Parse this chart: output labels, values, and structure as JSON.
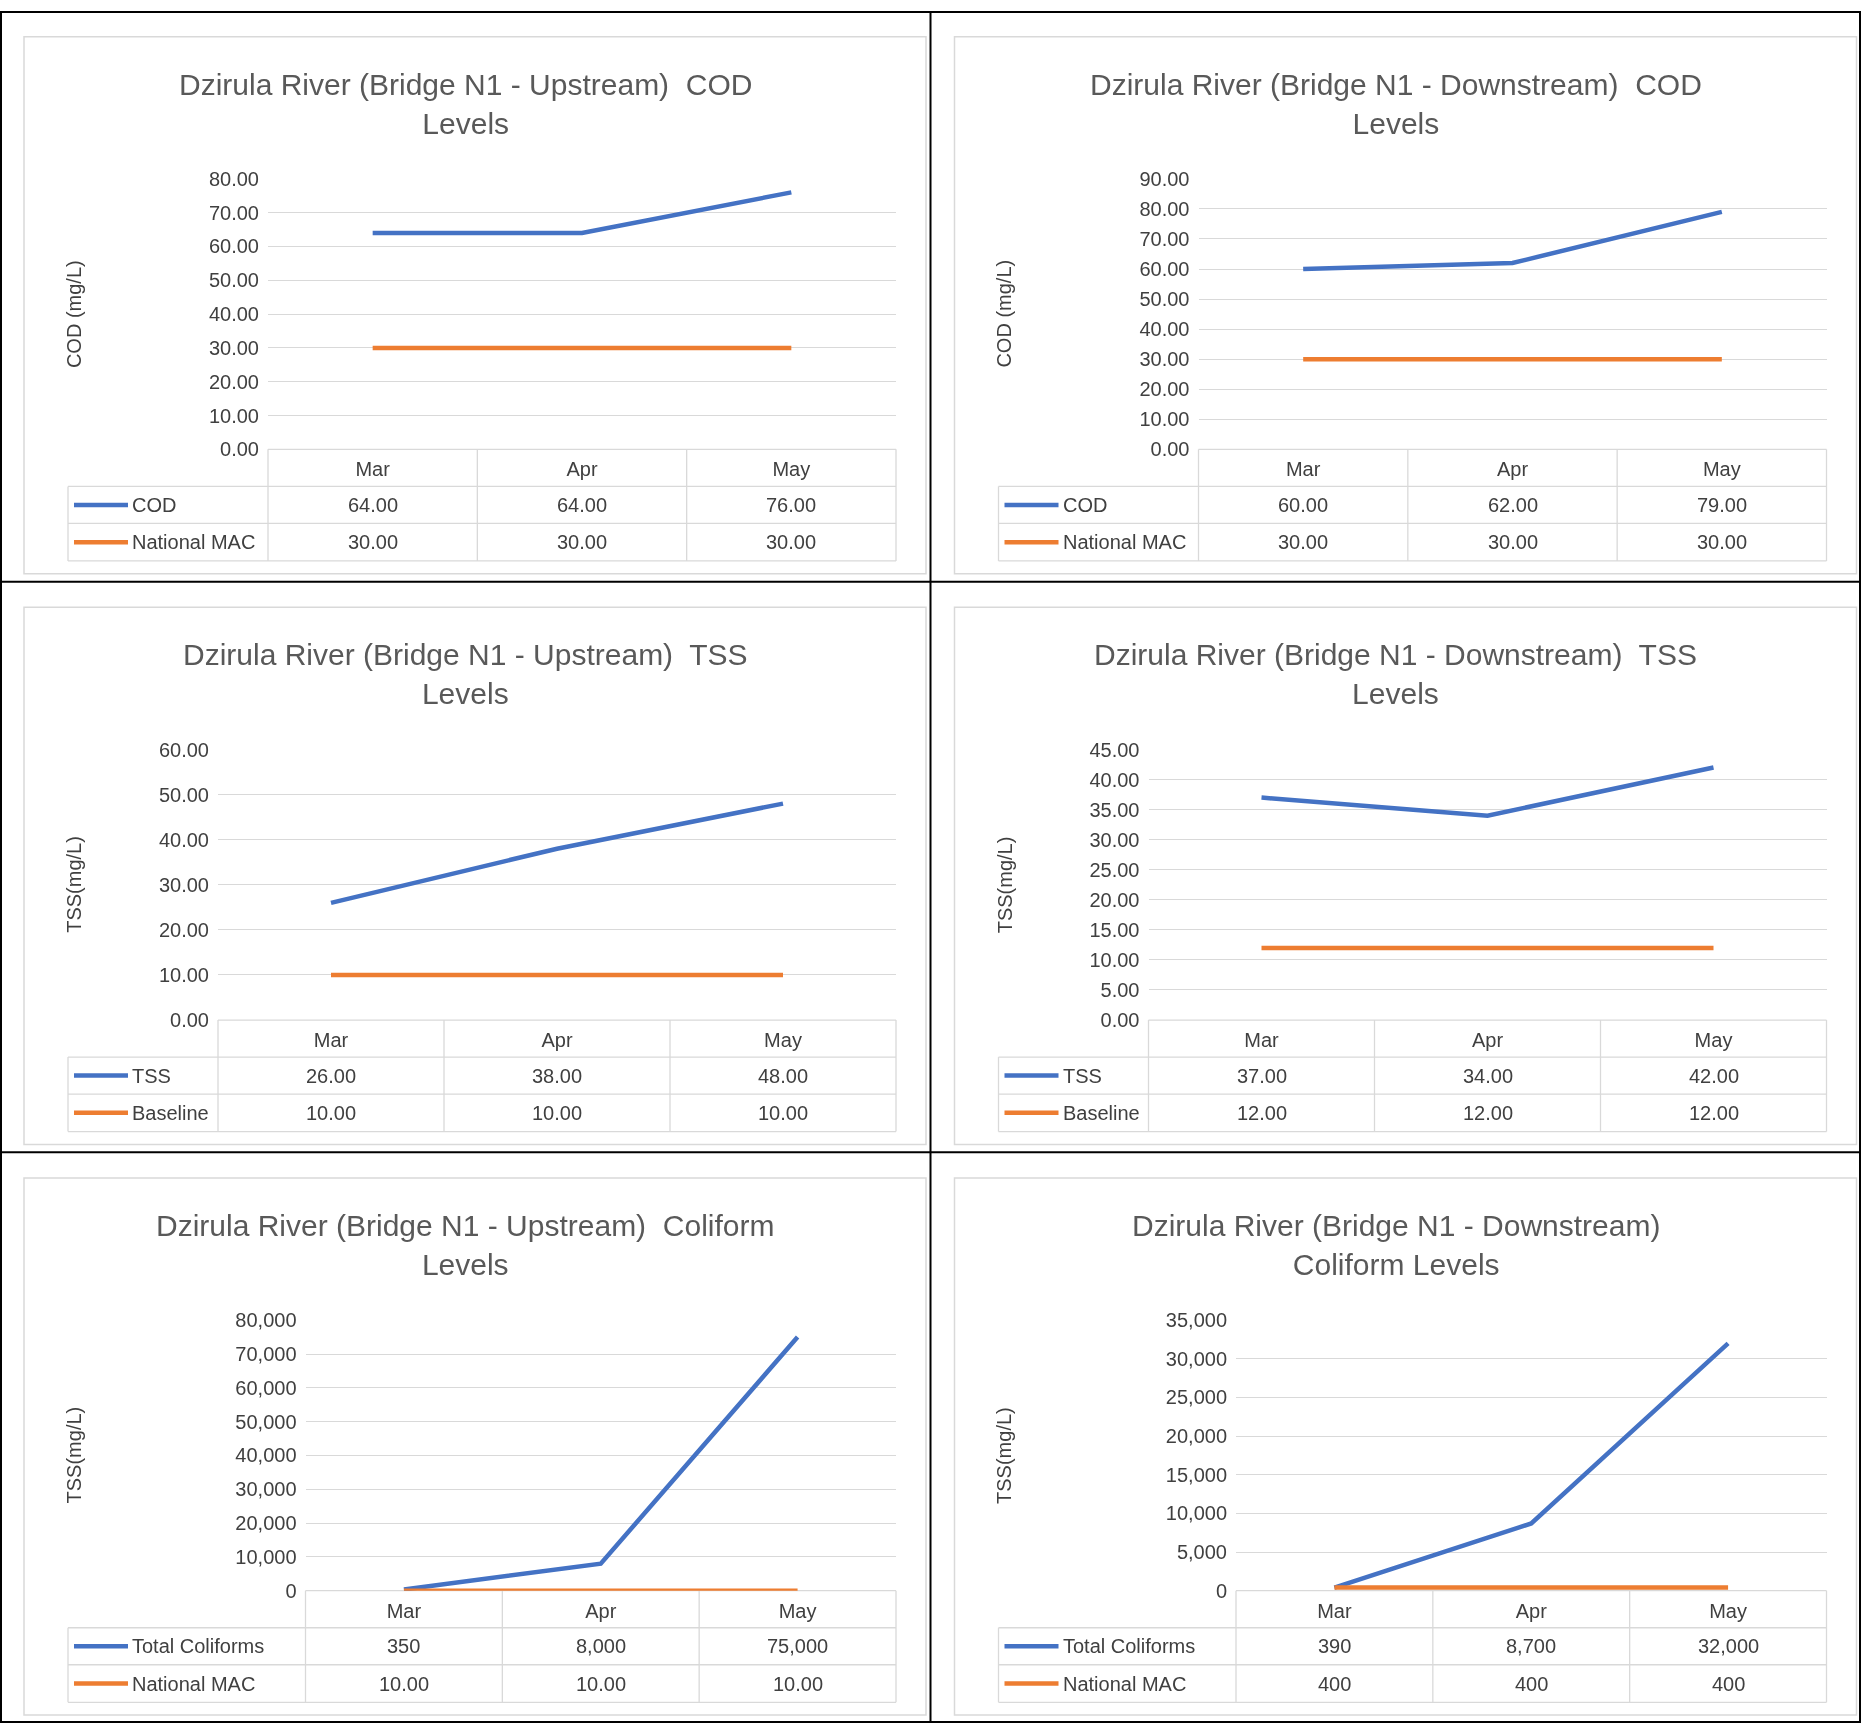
{
  "chart_data": [
    {
      "type": "line",
      "title": "Dzirula River (Bridge N1 - Upstream)  COD Levels",
      "legend": "bottom",
      "ylabel": "COD (mg/L)",
      "categories": [
        "Mar",
        "Apr",
        "May"
      ],
      "grid": "y",
      "marker": "none",
      "ylim": [
        0,
        80
      ],
      "yticks": [
        {
          "value": 0,
          "label": "0.00"
        },
        {
          "value": 10,
          "label": "10.00"
        },
        {
          "value": 20,
          "label": "20.00"
        },
        {
          "value": 30,
          "label": "30.00"
        },
        {
          "value": 40,
          "label": "40.00"
        },
        {
          "value": 50,
          "label": "50.00"
        },
        {
          "value": 60,
          "label": "60.00"
        },
        {
          "value": 70,
          "label": "70.00"
        },
        {
          "value": 80,
          "label": "80.00"
        }
      ],
      "series": [
        {
          "name": "COD",
          "color": "#4472c4",
          "values": [
            64,
            64,
            76
          ],
          "value_labels": [
            "64.00",
            "64.00",
            "76.00"
          ]
        },
        {
          "name": "National MAC",
          "color": "#ed7d31",
          "values": [
            30,
            30,
            30
          ],
          "value_labels": [
            "30.00",
            "30.00",
            "30.00"
          ]
        }
      ]
    },
    {
      "type": "line",
      "title": "Dzirula River (Bridge N1 - Downstream)  COD Levels",
      "legend": "bottom",
      "ylabel": "COD (mg/L)",
      "categories": [
        "Mar",
        "Apr",
        "May"
      ],
      "grid": "y",
      "marker": "none",
      "ylim": [
        0,
        90
      ],
      "yticks": [
        {
          "value": 0,
          "label": "0.00"
        },
        {
          "value": 10,
          "label": "10.00"
        },
        {
          "value": 20,
          "label": "20.00"
        },
        {
          "value": 30,
          "label": "30.00"
        },
        {
          "value": 40,
          "label": "40.00"
        },
        {
          "value": 50,
          "label": "50.00"
        },
        {
          "value": 60,
          "label": "60.00"
        },
        {
          "value": 70,
          "label": "70.00"
        },
        {
          "value": 80,
          "label": "80.00"
        },
        {
          "value": 90,
          "label": "90.00"
        }
      ],
      "series": [
        {
          "name": "COD",
          "color": "#4472c4",
          "values": [
            60,
            62,
            79
          ],
          "value_labels": [
            "60.00",
            "62.00",
            "79.00"
          ]
        },
        {
          "name": "National MAC",
          "color": "#ed7d31",
          "values": [
            30,
            30,
            30
          ],
          "value_labels": [
            "30.00",
            "30.00",
            "30.00"
          ]
        }
      ]
    },
    {
      "type": "line",
      "title": "Dzirula River (Bridge N1 - Upstream)  TSS Levels",
      "legend": "bottom",
      "ylabel": "TSS(mg/L)",
      "categories": [
        "Mar",
        "Apr",
        "May"
      ],
      "grid": "y",
      "marker": "none",
      "ylim": [
        0,
        60
      ],
      "yticks": [
        {
          "value": 0,
          "label": "0.00"
        },
        {
          "value": 10,
          "label": "10.00"
        },
        {
          "value": 20,
          "label": "20.00"
        },
        {
          "value": 30,
          "label": "30.00"
        },
        {
          "value": 40,
          "label": "40.00"
        },
        {
          "value": 50,
          "label": "50.00"
        },
        {
          "value": 60,
          "label": "60.00"
        }
      ],
      "series": [
        {
          "name": "TSS",
          "color": "#4472c4",
          "values": [
            26,
            38,
            48
          ],
          "value_labels": [
            "26.00",
            "38.00",
            "48.00"
          ]
        },
        {
          "name": "Baseline",
          "color": "#ed7d31",
          "values": [
            10,
            10,
            10
          ],
          "value_labels": [
            "10.00",
            "10.00",
            "10.00"
          ]
        }
      ]
    },
    {
      "type": "line",
      "title": "Dzirula River (Bridge N1 - Downstream)  TSS Levels",
      "legend": "bottom",
      "ylabel": "TSS(mg/L)",
      "categories": [
        "Mar",
        "Apr",
        "May"
      ],
      "grid": "y",
      "marker": "none",
      "ylim": [
        0,
        45
      ],
      "yticks": [
        {
          "value": 0,
          "label": "0.00"
        },
        {
          "value": 5,
          "label": "5.00"
        },
        {
          "value": 10,
          "label": "10.00"
        },
        {
          "value": 15,
          "label": "15.00"
        },
        {
          "value": 20,
          "label": "20.00"
        },
        {
          "value": 25,
          "label": "25.00"
        },
        {
          "value": 30,
          "label": "30.00"
        },
        {
          "value": 35,
          "label": "35.00"
        },
        {
          "value": 40,
          "label": "40.00"
        },
        {
          "value": 45,
          "label": "45.00"
        }
      ],
      "series": [
        {
          "name": "TSS",
          "color": "#4472c4",
          "values": [
            37,
            34,
            42
          ],
          "value_labels": [
            "37.00",
            "34.00",
            "42.00"
          ]
        },
        {
          "name": "Baseline",
          "color": "#ed7d31",
          "values": [
            12,
            12,
            12
          ],
          "value_labels": [
            "12.00",
            "12.00",
            "12.00"
          ]
        }
      ]
    },
    {
      "type": "line",
      "title": "Dzirula River (Bridge N1 - Upstream)  Coliform Levels",
      "legend": "bottom",
      "ylabel": "TSS(mg/L)",
      "categories": [
        "Mar",
        "Apr",
        "May"
      ],
      "grid": "y",
      "marker": "none",
      "ylim": [
        0,
        80000
      ],
      "yticks": [
        0,
        {
          "value": 10000,
          "label": "10,000"
        },
        {
          "value": 20000,
          "label": "20,000"
        },
        {
          "value": 30000,
          "label": "30,000"
        },
        {
          "value": 40000,
          "label": "40,000"
        },
        {
          "value": 50000,
          "label": "50,000"
        },
        {
          "value": 60000,
          "label": "60,000"
        },
        {
          "value": 70000,
          "label": "70,000"
        },
        {
          "value": 80000,
          "label": "80,000"
        }
      ],
      "series": [
        {
          "name": "Total Coliforms",
          "color": "#4472c4",
          "values": [
            350,
            8000,
            75000
          ],
          "value_labels": [
            "350",
            "8,000",
            "75,000"
          ]
        },
        {
          "name": "National MAC",
          "color": "#ed7d31",
          "values": [
            10,
            10,
            10
          ],
          "value_labels": [
            "10.00",
            "10.00",
            "10.00"
          ]
        }
      ]
    },
    {
      "type": "line",
      "title": "Dzirula River (Bridge N1 - Downstream)  Coliform Levels",
      "legend": "bottom",
      "ylabel": "TSS(mg/L)",
      "categories": [
        "Mar",
        "Apr",
        "May"
      ],
      "grid": "y",
      "marker": "none",
      "ylim": [
        0,
        35000
      ],
      "yticks": [
        0,
        {
          "value": 5000,
          "label": "5,000"
        },
        {
          "value": 10000,
          "label": "10,000"
        },
        {
          "value": 15000,
          "label": "15,000"
        },
        {
          "value": 20000,
          "label": "20,000"
        },
        {
          "value": 25000,
          "label": "25,000"
        },
        {
          "value": 30000,
          "label": "30,000"
        },
        {
          "value": 35000,
          "label": "35,000"
        }
      ],
      "series": [
        {
          "name": "Total Coliforms",
          "color": "#4472c4",
          "values": [
            390,
            8700,
            32000
          ],
          "value_labels": [
            "390",
            "8,700",
            "32,000"
          ]
        },
        {
          "name": "National MAC",
          "color": "#ed7d31",
          "values": [
            400,
            400,
            400
          ],
          "value_labels": [
            "400",
            "400",
            "400"
          ]
        }
      ]
    }
  ]
}
